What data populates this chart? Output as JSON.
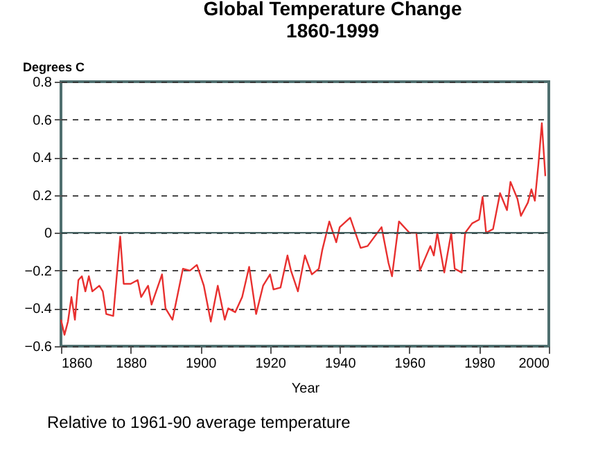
{
  "chart_data": {
    "type": "line",
    "title": "Global Temperature Change",
    "subtitle": "1860-1999",
    "xlabel": "Year",
    "ylabel": "Degrees C",
    "annotations": [
      "Relative to 1961-90 average temperature"
    ],
    "x": [
      1860,
      1861,
      1862,
      1863,
      1864,
      1865,
      1866,
      1867,
      1868,
      1869,
      1871,
      1872,
      1873,
      1875,
      1877,
      1878,
      1880,
      1882,
      1883,
      1885,
      1886,
      1889,
      1890,
      1892,
      1895,
      1897,
      1899,
      1901,
      1903,
      1905,
      1907,
      1908,
      1910,
      1912,
      1914,
      1916,
      1918,
      1920,
      1921,
      1923,
      1925,
      1926,
      1928,
      1930,
      1932,
      1934,
      1935,
      1937,
      1939,
      1940,
      1943,
      1946,
      1948,
      1952,
      1954,
      1955,
      1957,
      1960,
      1962,
      1963,
      1966,
      1967,
      1968,
      1970,
      1972,
      1973,
      1975,
      1976,
      1978,
      1980,
      1981,
      1982,
      1984,
      1986,
      1988,
      1989,
      1991,
      1992,
      1994,
      1995,
      1996,
      1997,
      1998,
      1999
    ],
    "series": [
      {
        "color": "#e8302f",
        "values": [
          -0.46,
          -0.54,
          -0.47,
          -0.34,
          -0.46,
          -0.25,
          -0.23,
          -0.31,
          -0.23,
          -0.31,
          -0.28,
          -0.31,
          -0.43,
          -0.44,
          -0.02,
          -0.27,
          -0.27,
          -0.25,
          -0.34,
          -0.28,
          -0.38,
          -0.22,
          -0.4,
          -0.46,
          -0.19,
          -0.2,
          -0.17,
          -0.28,
          -0.47,
          -0.28,
          -0.46,
          -0.4,
          -0.42,
          -0.34,
          -0.18,
          -0.43,
          -0.28,
          -0.22,
          -0.3,
          -0.29,
          -0.12,
          -0.2,
          -0.31,
          -0.12,
          -0.22,
          -0.19,
          -0.09,
          0.06,
          -0.05,
          0.03,
          0.08,
          -0.08,
          -0.07,
          0.03,
          -0.16,
          -0.23,
          0.06,
          0.0,
          0.0,
          -0.2,
          -0.07,
          -0.12,
          0.0,
          -0.21,
          0.0,
          -0.19,
          -0.21,
          0.0,
          0.05,
          0.07,
          0.19,
          0.0,
          0.02,
          0.21,
          0.12,
          0.27,
          0.18,
          0.09,
          0.16,
          0.23,
          0.17,
          0.36,
          0.58,
          0.3
        ]
      }
    ],
    "xlim": [
      1860,
      2000
    ],
    "xticks": [
      1860,
      1880,
      1900,
      1920,
      1940,
      1960,
      1980,
      2000
    ],
    "ylim": [
      -0.6,
      0.8
    ],
    "yticks": [
      -0.6,
      -0.4,
      -0.2,
      0,
      0.2,
      0.4,
      0.6,
      0.8
    ],
    "grid": "y",
    "line_style": "solid",
    "ref_lines": [
      {
        "axis": "y",
        "value": 0,
        "color": "#2f4f4f",
        "line_style": "solid"
      }
    ]
  }
}
